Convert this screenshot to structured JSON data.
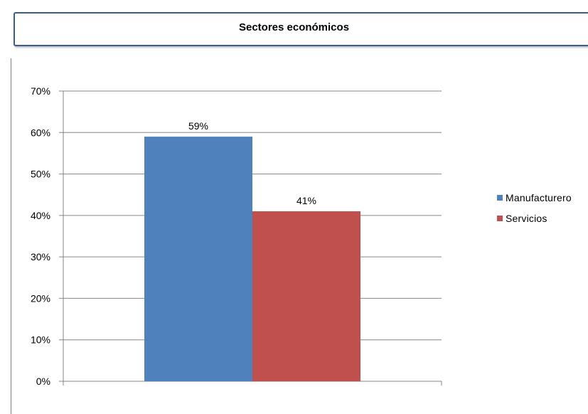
{
  "chart_data": {
    "type": "bar",
    "title": "Sectores económicos",
    "series": [
      {
        "name": "Manufacturero",
        "values": [
          59
        ],
        "label": "59%",
        "color": "#4f81bd"
      },
      {
        "name": "Servicios",
        "values": [
          41
        ],
        "label": "41%",
        "color": "#c0504d"
      }
    ],
    "categories": [
      ""
    ],
    "ylim": [
      0,
      70
    ],
    "yticks": [
      "0%",
      "10%",
      "20%",
      "30%",
      "40%",
      "50%",
      "60%",
      "70%"
    ],
    "ytick_values": [
      0,
      10,
      20,
      30,
      40,
      50,
      60,
      70
    ],
    "grid": true,
    "legend_position": "right"
  }
}
